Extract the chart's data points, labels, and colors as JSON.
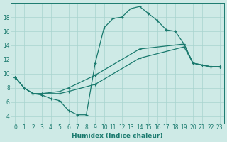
{
  "xlabel": "Humidex (Indice chaleur)",
  "bg_color": "#ceeae6",
  "grid_color": "#a8d4cf",
  "line_color": "#1a7a6e",
  "xlim": [
    -0.5,
    23.5
  ],
  "ylim": [
    3,
    20
  ],
  "xticks": [
    0,
    1,
    2,
    3,
    4,
    5,
    6,
    7,
    8,
    9,
    10,
    11,
    12,
    13,
    14,
    15,
    16,
    17,
    18,
    19,
    20,
    21,
    22,
    23
  ],
  "yticks": [
    4,
    6,
    8,
    10,
    12,
    14,
    16,
    18
  ],
  "line1_x": [
    0,
    1,
    2,
    3,
    4,
    5,
    6,
    7,
    8,
    9,
    10,
    11,
    12,
    13,
    14,
    15,
    16,
    17,
    18,
    19,
    20,
    21,
    22,
    23
  ],
  "line1_y": [
    9.5,
    8.0,
    7.2,
    7.0,
    6.5,
    6.2,
    4.8,
    4.2,
    4.2,
    11.5,
    16.5,
    17.8,
    18.0,
    19.2,
    19.5,
    18.5,
    17.5,
    16.2,
    16.0,
    14.2,
    11.5,
    11.2,
    11.0,
    11.0
  ],
  "line2_x": [
    0,
    1,
    2,
    3,
    5,
    6,
    9,
    14,
    19,
    20,
    22,
    23
  ],
  "line2_y": [
    9.5,
    8.0,
    7.2,
    7.2,
    7.5,
    8.0,
    9.8,
    13.5,
    14.2,
    11.5,
    11.0,
    11.0
  ],
  "line3_x": [
    0,
    1,
    2,
    3,
    5,
    6,
    9,
    14,
    19,
    20,
    22,
    23
  ],
  "line3_y": [
    9.5,
    8.0,
    7.2,
    7.2,
    7.2,
    7.5,
    8.5,
    12.2,
    13.8,
    11.5,
    11.0,
    11.0
  ]
}
